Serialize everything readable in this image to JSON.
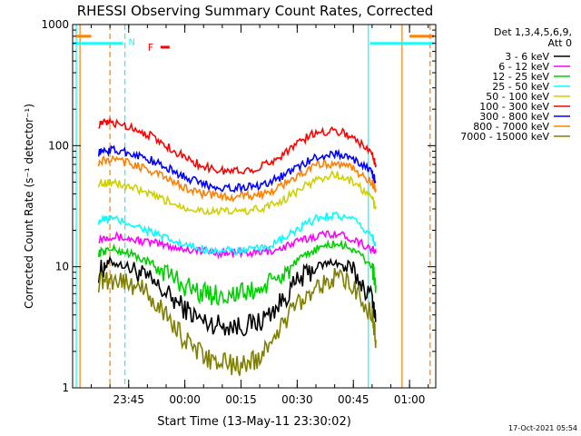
{
  "chart_data": {
    "type": "line",
    "title": "RHESSI Observing Summary Count Rates, Corrected",
    "xlabel": "Start Time (13-May-11 23:30:02)",
    "ylabel": "Corrected Count Rate (s⁻¹ detector⁻¹)",
    "y_scale": "log",
    "ylim": [
      1,
      1000
    ],
    "xlim": [
      "23:30:02",
      "01:07:00"
    ],
    "yticks": [
      "1",
      "10",
      "100",
      "1000"
    ],
    "xticks": [
      "23:45",
      "00:00",
      "00:15",
      "00:30",
      "00:45",
      "01:00"
    ],
    "grid": false,
    "legend_position": "right",
    "legend_header": [
      "Det 1,3,4,5,6,9,",
      "Att 0"
    ],
    "timestamp": "17-Oct-2021 05:54",
    "data_interval": [
      "23:37:00",
      "00:51:30"
    ],
    "series": [
      {
        "name": "3 - 6 keV",
        "color": "#000000",
        "x": [
          "23:37",
          "23:40",
          "23:45",
          "23:50",
          "23:55",
          "00:00",
          "00:05",
          "00:10",
          "00:15",
          "00:20",
          "00:25",
          "00:30",
          "00:35",
          "00:40",
          "00:45",
          "00:50",
          "00:51"
        ],
        "y": [
          9,
          11,
          10,
          8,
          6,
          4.5,
          3.5,
          3.3,
          3.2,
          3.5,
          4.8,
          7.5,
          10,
          11,
          9,
          5.5,
          3.5
        ]
      },
      {
        "name": "6 - 12 keV",
        "color": "#ff00ff",
        "x": [
          "23:37",
          "23:40",
          "23:45",
          "23:50",
          "23:55",
          "00:00",
          "00:05",
          "00:10",
          "00:15",
          "00:20",
          "00:25",
          "00:30",
          "00:35",
          "00:40",
          "00:45",
          "00:50",
          "00:51"
        ],
        "y": [
          17,
          18,
          17,
          16,
          15,
          14,
          13.5,
          13,
          13,
          13,
          14,
          16,
          18,
          19,
          17,
          14,
          13
        ]
      },
      {
        "name": "12 - 25 keV",
        "color": "#00d000",
        "x": [
          "23:37",
          "23:40",
          "23:45",
          "23:50",
          "23:55",
          "00:00",
          "00:05",
          "00:10",
          "00:15",
          "00:20",
          "00:25",
          "00:30",
          "00:35",
          "00:40",
          "00:45",
          "00:50",
          "00:51"
        ],
        "y": [
          13,
          14,
          13,
          11,
          9,
          7,
          6,
          5.8,
          6,
          6.5,
          8,
          11,
          14,
          15.5,
          14,
          10,
          7
        ]
      },
      {
        "name": "25 - 50 keV",
        "color": "#00ffff",
        "x": [
          "23:37",
          "23:40",
          "23:45",
          "23:50",
          "23:55",
          "00:00",
          "00:05",
          "00:10",
          "00:15",
          "00:20",
          "00:25",
          "00:30",
          "00:35",
          "00:40",
          "00:45",
          "00:50",
          "00:51"
        ],
        "y": [
          24,
          25,
          23,
          20,
          17,
          15,
          14,
          13.5,
          13.5,
          14,
          16,
          20,
          25,
          27,
          24,
          18,
          15
        ]
      },
      {
        "name": "50 - 100 keV",
        "color": "#d0d000",
        "x": [
          "23:37",
          "23:40",
          "23:45",
          "23:50",
          "23:55",
          "00:00",
          "00:05",
          "00:10",
          "00:15",
          "00:20",
          "00:25",
          "00:30",
          "00:35",
          "00:40",
          "00:45",
          "00:50",
          "00:51"
        ],
        "y": [
          49,
          50,
          46,
          40,
          35,
          31,
          29,
          28.5,
          28.5,
          30,
          34,
          42,
          52,
          58,
          50,
          37,
          30
        ]
      },
      {
        "name": "100 - 300 keV",
        "color": "#ff0000",
        "x": [
          "23:37",
          "23:40",
          "23:45",
          "23:50",
          "23:55",
          "00:00",
          "00:05",
          "00:10",
          "00:15",
          "00:20",
          "00:25",
          "00:30",
          "00:35",
          "00:40",
          "00:45",
          "00:50",
          "00:51"
        ],
        "y": [
          150,
          155,
          145,
          125,
          100,
          80,
          67,
          62,
          62,
          66,
          80,
          105,
          128,
          135,
          118,
          85,
          70
        ]
      },
      {
        "name": "300 - 800 keV",
        "color": "#0000ff",
        "x": [
          "23:37",
          "23:40",
          "23:45",
          "23:50",
          "23:55",
          "00:00",
          "00:05",
          "00:10",
          "00:15",
          "00:20",
          "00:25",
          "00:30",
          "00:35",
          "00:40",
          "00:45",
          "00:50",
          "00:51"
        ],
        "y": [
          88,
          92,
          88,
          78,
          66,
          55,
          48,
          45,
          45,
          47,
          54,
          66,
          80,
          86,
          78,
          60,
          50
        ]
      },
      {
        "name": "800 - 7000 keV",
        "color": "#ff8000",
        "x": [
          "23:37",
          "23:40",
          "23:45",
          "23:50",
          "23:55",
          "00:00",
          "00:05",
          "00:10",
          "00:15",
          "00:20",
          "00:25",
          "00:30",
          "00:35",
          "00:40",
          "00:45",
          "00:50",
          "00:51"
        ],
        "y": [
          73,
          77,
          72,
          64,
          54,
          45,
          40,
          38,
          38,
          39,
          45,
          56,
          68,
          72,
          64,
          50,
          42
        ]
      },
      {
        "name": "7000 - 15000 keV",
        "color": "#808000",
        "x": [
          "23:37",
          "23:40",
          "23:45",
          "23:50",
          "23:55",
          "00:00",
          "00:05",
          "00:10",
          "00:15",
          "00:20",
          "00:25",
          "00:30",
          "00:35",
          "00:40",
          "00:45",
          "00:50",
          "00:51"
        ],
        "y": [
          7.5,
          8,
          7.5,
          6,
          4,
          2.5,
          1.8,
          1.6,
          1.5,
          1.8,
          3,
          5,
          7,
          8,
          7,
          4,
          2.5
        ]
      }
    ],
    "annotations": [
      {
        "text": "N",
        "color": "#00ffff",
        "type": "night-interval",
        "intervals": [
          [
            "23:30:02",
            "23:43:30"
          ],
          [
            "00:49:30",
            "01:06:30"
          ]
        ]
      },
      {
        "text": "F",
        "color": "#ff0000",
        "type": "flag-bar",
        "at": "23:53:30",
        "y": 650
      },
      {
        "type": "attenuator-bar",
        "color": "#ff8000",
        "intervals": [
          [
            "23:31:00",
            "23:35:00"
          ],
          [
            "01:00:00",
            "01:06:30"
          ]
        ],
        "y": 800
      }
    ],
    "vertical_markers": [
      {
        "time": "23:32:00",
        "color": "#ff8000",
        "style": "solid"
      },
      {
        "time": "23:40:00",
        "color": "#ff8000",
        "style": "dashed"
      },
      {
        "time": "23:44:00",
        "color": "#00ffff",
        "style": "dashed"
      },
      {
        "time": "00:49:00",
        "color": "#00ffff",
        "style": "solid"
      },
      {
        "time": "00:58:00",
        "color": "#ff8000",
        "style": "solid"
      },
      {
        "time": "01:05:30",
        "color": "#ff8000",
        "style": "dashed"
      },
      {
        "time": "23:31:00",
        "color": "#00ffff",
        "style": "solid"
      }
    ]
  }
}
